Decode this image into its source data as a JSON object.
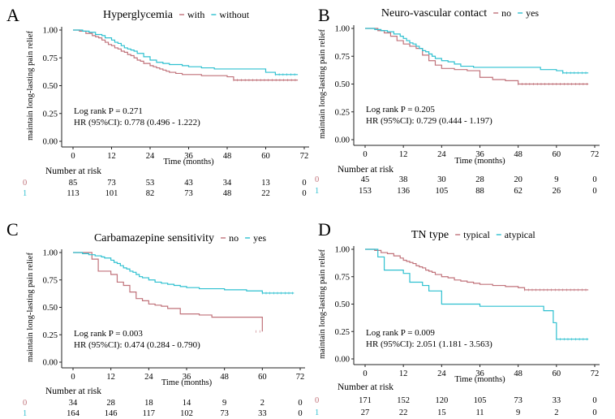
{
  "colors": {
    "group0": "#c0727a",
    "group1": "#2ec0d0",
    "axis": "#222222"
  },
  "chart_data": [
    {
      "type": "line",
      "panel": "A",
      "title": "Hyperglycemia",
      "legend": [
        {
          "label": "with",
          "color": "#c0727a"
        },
        {
          "label": "without",
          "color": "#2ec0d0"
        }
      ],
      "xlabel": "Time (months)",
      "ylabel": "maintain long-lasting pain relief",
      "xlim": [
        0,
        72
      ],
      "ylim": [
        0,
        1
      ],
      "xticks": [
        "0",
        "12",
        "24",
        "36",
        "48",
        "60",
        "72"
      ],
      "yticks": [
        "0.00",
        "0.25",
        "0.50",
        "0.75",
        "1.00"
      ],
      "stats": [
        "Log rank P = 0.271",
        "HR (95%CI): 0.778 (0.496 - 1.222)"
      ],
      "risk_header": "Number at risk",
      "risk_table": [
        {
          "group": "0",
          "color": "#c0727a",
          "values": [
            "85",
            "73",
            "53",
            "43",
            "34",
            "13",
            "0"
          ]
        },
        {
          "group": "1",
          "color": "#2ec0d0",
          "values": [
            "113",
            "101",
            "82",
            "73",
            "48",
            "22",
            "0"
          ]
        }
      ],
      "series": [
        {
          "group": "0",
          "x": [
            0,
            2,
            4,
            6,
            7,
            8,
            9,
            10,
            11,
            12,
            13,
            14,
            15,
            16,
            17,
            18,
            19,
            20,
            21,
            22,
            24,
            25,
            26,
            27,
            28,
            29,
            30,
            32,
            34,
            36,
            40,
            48,
            50,
            70
          ],
          "y": [
            1,
            0.99,
            0.97,
            0.95,
            0.94,
            0.93,
            0.91,
            0.89,
            0.87,
            0.86,
            0.84,
            0.83,
            0.81,
            0.8,
            0.78,
            0.77,
            0.75,
            0.73,
            0.72,
            0.7,
            0.68,
            0.67,
            0.66,
            0.65,
            0.64,
            0.63,
            0.62,
            0.61,
            0.6,
            0.6,
            0.59,
            0.58,
            0.55,
            0.55
          ]
        },
        {
          "group": "1",
          "x": [
            0,
            3,
            5,
            7,
            9,
            10,
            12,
            13,
            14,
            15,
            16,
            17,
            18,
            19,
            20,
            22,
            24,
            26,
            28,
            30,
            34,
            36,
            40,
            44,
            48,
            55,
            60,
            63,
            70
          ],
          "y": [
            1,
            0.99,
            0.98,
            0.96,
            0.95,
            0.93,
            0.91,
            0.89,
            0.88,
            0.86,
            0.84,
            0.83,
            0.82,
            0.81,
            0.79,
            0.76,
            0.73,
            0.71,
            0.7,
            0.69,
            0.68,
            0.67,
            0.66,
            0.65,
            0.65,
            0.65,
            0.62,
            0.6,
            0.6
          ]
        }
      ]
    },
    {
      "type": "line",
      "panel": "B",
      "title": "Neuro-vascular contact",
      "legend": [
        {
          "label": "no",
          "color": "#c0727a"
        },
        {
          "label": "yes",
          "color": "#2ec0d0"
        }
      ],
      "xlabel": "Time (months)",
      "ylabel": "maintain long-lasting pain relief",
      "xlim": [
        0,
        72
      ],
      "ylim": [
        0,
        1
      ],
      "xticks": [
        "0",
        "12",
        "24",
        "36",
        "48",
        "60",
        "72"
      ],
      "yticks": [
        "0.00",
        "0.25",
        "0.50",
        "0.75",
        "1.00"
      ],
      "stats": [
        "Log rank P = 0.205",
        "HR (95%CI): 0.729 (0.444 - 1.197)"
      ],
      "risk_header": "Number at risk",
      "risk_table": [
        {
          "group": "0",
          "color": "#c0727a",
          "values": [
            "45",
            "38",
            "30",
            "28",
            "20",
            "9",
            "0"
          ]
        },
        {
          "group": "1",
          "color": "#2ec0d0",
          "values": [
            "153",
            "136",
            "105",
            "88",
            "62",
            "26",
            "0"
          ]
        }
      ],
      "series": [
        {
          "group": "0",
          "x": [
            0,
            4,
            6,
            8,
            10,
            12,
            14,
            16,
            18,
            20,
            22,
            24,
            28,
            32,
            36,
            40,
            44,
            48,
            70
          ],
          "y": [
            1,
            0.98,
            0.96,
            0.93,
            0.89,
            0.86,
            0.84,
            0.82,
            0.76,
            0.71,
            0.67,
            0.64,
            0.63,
            0.62,
            0.56,
            0.54,
            0.53,
            0.5,
            0.5
          ]
        },
        {
          "group": "1",
          "x": [
            0,
            3,
            5,
            7,
            9,
            11,
            12,
            13,
            14,
            15,
            16,
            17,
            18,
            19,
            20,
            21,
            22,
            24,
            26,
            28,
            30,
            34,
            36,
            42,
            48,
            55,
            60,
            62,
            70
          ],
          "y": [
            1,
            0.99,
            0.98,
            0.97,
            0.95,
            0.93,
            0.91,
            0.89,
            0.87,
            0.86,
            0.84,
            0.82,
            0.8,
            0.79,
            0.77,
            0.75,
            0.73,
            0.71,
            0.7,
            0.68,
            0.66,
            0.65,
            0.65,
            0.65,
            0.65,
            0.63,
            0.62,
            0.6,
            0.6
          ]
        }
      ]
    },
    {
      "type": "line",
      "panel": "C",
      "title": "Carbamazepine sensitivity",
      "legend": [
        {
          "label": "no",
          "color": "#c0727a"
        },
        {
          "label": "yes",
          "color": "#2ec0d0"
        }
      ],
      "xlabel": "Time (months)",
      "ylabel": "maintain long-lasting pain relief",
      "xlim": [
        0,
        72
      ],
      "ylim": [
        0,
        1
      ],
      "xticks": [
        "0",
        "12",
        "24",
        "36",
        "48",
        "60",
        "72"
      ],
      "yticks": [
        "0.00",
        "0.25",
        "0.50",
        "0.75",
        "1.00"
      ],
      "stats": [
        "Log rank P = 0.003",
        "HR (95%CI): 0.474 (0.284 - 0.790)"
      ],
      "risk_header": "Number at risk",
      "risk_table": [
        {
          "group": "0",
          "color": "#c0727a",
          "values": [
            "34",
            "28",
            "18",
            "14",
            "9",
            "2",
            "0"
          ]
        },
        {
          "group": "1",
          "color": "#2ec0d0",
          "values": [
            "164",
            "146",
            "117",
            "102",
            "73",
            "33",
            "0"
          ]
        }
      ],
      "series": [
        {
          "group": "0",
          "x": [
            0,
            6,
            8,
            12,
            14,
            16,
            18,
            20,
            22,
            24,
            26,
            28,
            30,
            34,
            40,
            44,
            58,
            60
          ],
          "y": [
            1,
            0.94,
            0.83,
            0.8,
            0.73,
            0.7,
            0.64,
            0.58,
            0.56,
            0.53,
            0.52,
            0.51,
            0.49,
            0.44,
            0.43,
            0.41,
            0.41,
            0.28
          ]
        },
        {
          "group": "1",
          "x": [
            0,
            3,
            5,
            7,
            9,
            10,
            12,
            13,
            14,
            15,
            16,
            17,
            18,
            19,
            20,
            21,
            22,
            24,
            26,
            28,
            30,
            32,
            34,
            36,
            40,
            48,
            55,
            60,
            70
          ],
          "y": [
            1,
            0.99,
            0.98,
            0.97,
            0.96,
            0.95,
            0.93,
            0.91,
            0.9,
            0.88,
            0.86,
            0.85,
            0.83,
            0.82,
            0.8,
            0.78,
            0.77,
            0.75,
            0.73,
            0.72,
            0.71,
            0.7,
            0.69,
            0.68,
            0.67,
            0.66,
            0.65,
            0.63,
            0.63
          ]
        }
      ]
    },
    {
      "type": "line",
      "panel": "D",
      "title": "TN type",
      "legend": [
        {
          "label": "typical",
          "color": "#c0727a"
        },
        {
          "label": "atypical",
          "color": "#2ec0d0"
        }
      ],
      "xlabel": "Time (months)",
      "ylabel": "maintain long-lasting pain relief",
      "xlim": [
        0,
        72
      ],
      "ylim": [
        0,
        1
      ],
      "xticks": [
        "0",
        "12",
        "24",
        "36",
        "48",
        "60",
        "72"
      ],
      "yticks": [
        "0.00",
        "0.25",
        "0.50",
        "0.75",
        "1.00"
      ],
      "stats": [
        "Log rank P = 0.009",
        "HR (95%CI): 2.051 (1.181 - 3.563)"
      ],
      "risk_header": "Number at risk",
      "risk_table": [
        {
          "group": "0",
          "color": "#c0727a",
          "values": [
            "171",
            "152",
            "120",
            "105",
            "73",
            "33",
            "0"
          ]
        },
        {
          "group": "1",
          "color": "#2ec0d0",
          "values": [
            "27",
            "22",
            "15",
            "11",
            "9",
            "2",
            "0"
          ]
        }
      ],
      "series": [
        {
          "group": "0",
          "x": [
            0,
            3,
            5,
            7,
            9,
            11,
            12,
            13,
            14,
            15,
            16,
            17,
            18,
            19,
            20,
            21,
            22,
            24,
            26,
            28,
            30,
            32,
            34,
            36,
            40,
            44,
            48,
            50,
            70
          ],
          "y": [
            1,
            0.99,
            0.97,
            0.96,
            0.94,
            0.92,
            0.9,
            0.89,
            0.88,
            0.87,
            0.85,
            0.84,
            0.83,
            0.81,
            0.8,
            0.79,
            0.77,
            0.75,
            0.74,
            0.72,
            0.71,
            0.7,
            0.69,
            0.68,
            0.67,
            0.66,
            0.65,
            0.63,
            0.63
          ]
        },
        {
          "group": "1",
          "x": [
            0,
            4,
            6,
            12,
            14,
            18,
            20,
            24,
            36,
            56,
            59,
            60,
            70
          ],
          "y": [
            1,
            0.93,
            0.81,
            0.78,
            0.7,
            0.67,
            0.62,
            0.5,
            0.48,
            0.44,
            0.33,
            0.18,
            0.18
          ]
        }
      ]
    }
  ]
}
